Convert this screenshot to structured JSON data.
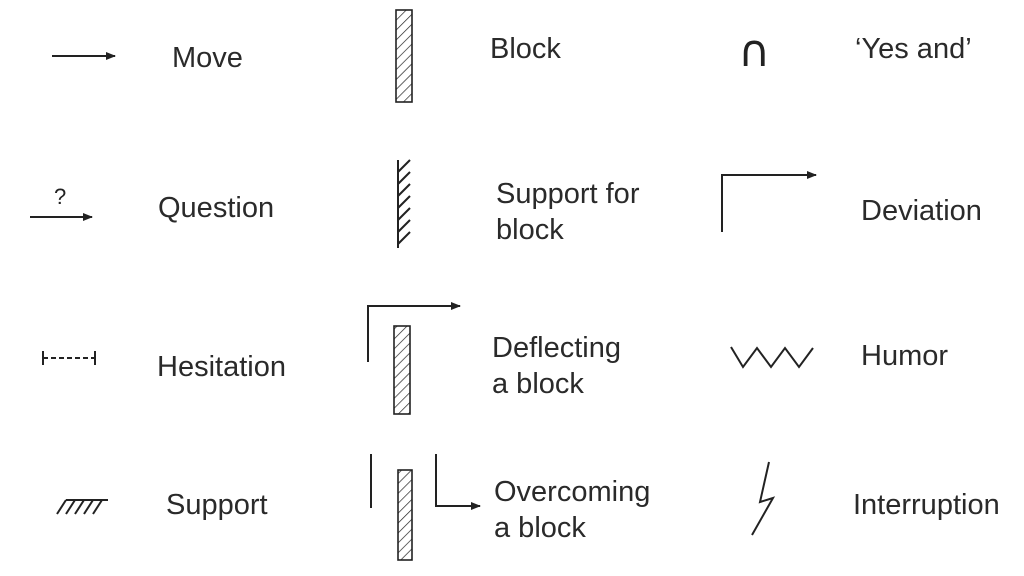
{
  "legend": {
    "move": "Move",
    "question": "Question",
    "question_mark": "?",
    "hesitation": "Hesitation",
    "support": "Support",
    "block": "Block",
    "support_for_block": [
      "Support for",
      "block"
    ],
    "deflecting_a_block": [
      "Deflecting",
      "a block"
    ],
    "overcoming_a_block": [
      "Overcoming",
      "a block"
    ],
    "yes_and": "‘Yes and’",
    "yes_and_symbol": "∩",
    "deviation": "Deviation",
    "humor": "Humor",
    "interruption": "Interruption"
  },
  "colors": {
    "ink": "#222222",
    "text": "#2a2a2a",
    "background": "#ffffff"
  }
}
